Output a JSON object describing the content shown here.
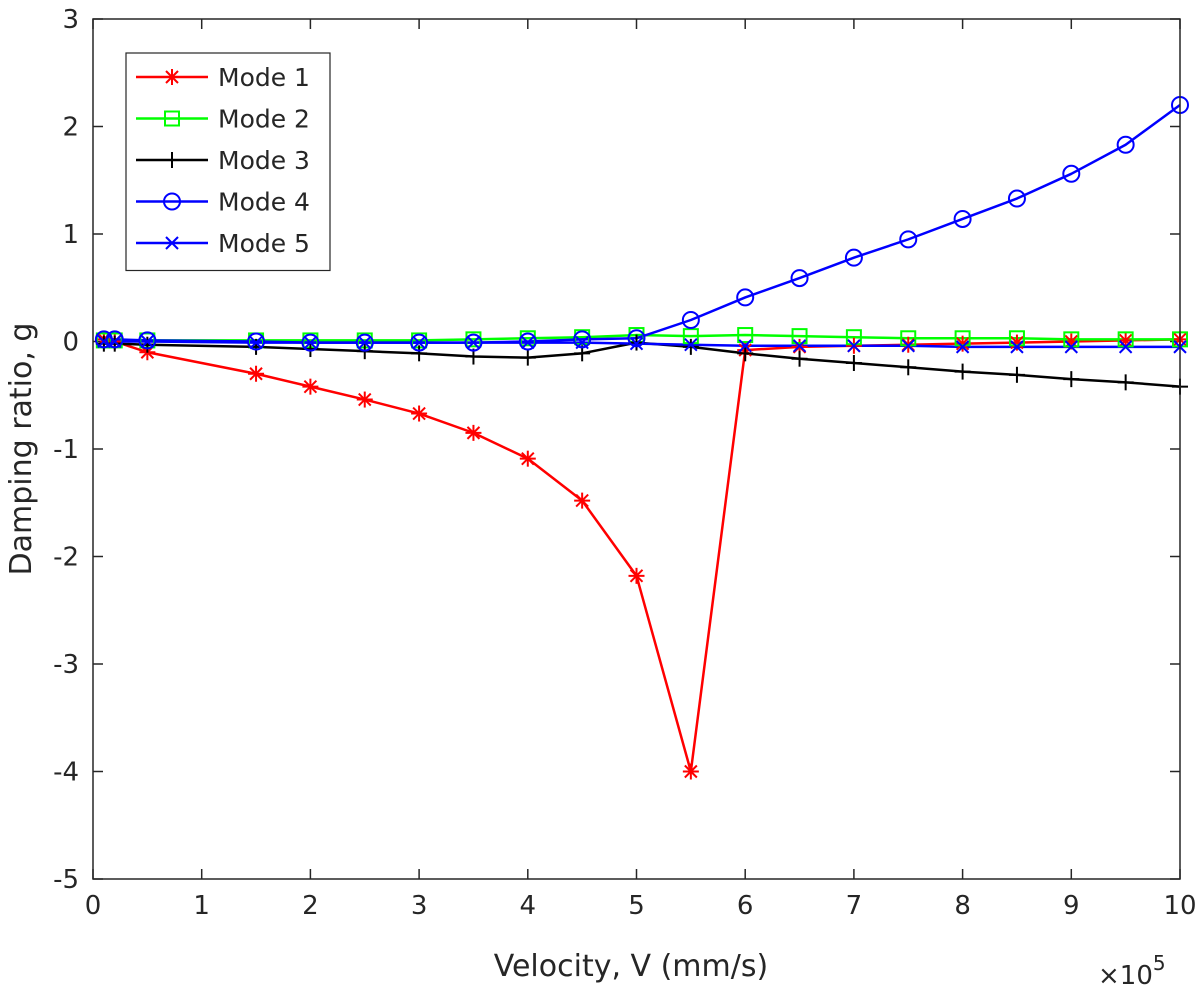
{
  "chart_data": {
    "type": "line",
    "xlabel": "Velocity, V (mm/s)",
    "ylabel": "Damping ratio, g",
    "x_multiplier_label": "×10",
    "x_multiplier_exponent": "5",
    "xlim": [
      0,
      10
    ],
    "ylim": [
      -5,
      3
    ],
    "xticks": [
      0,
      1,
      2,
      3,
      4,
      5,
      6,
      7,
      8,
      9,
      10
    ],
    "yticks": [
      3,
      2,
      1,
      0,
      -1,
      -2,
      -3,
      -4,
      -5
    ],
    "legend_placement": "top-left",
    "grid": false,
    "series": [
      {
        "name": "Mode 1",
        "color": "#ff0000",
        "marker": "asterisk",
        "x": [
          0.1,
          0.2,
          0.5,
          1.5,
          2,
          2.5,
          3,
          3.5,
          4,
          4.5,
          5,
          5.5,
          6,
          6.5,
          7,
          7.5,
          8,
          8.5,
          9,
          9.5,
          10
        ],
        "y": [
          0.02,
          0.0,
          -0.1,
          -0.3,
          -0.42,
          -0.54,
          -0.67,
          -0.85,
          -1.09,
          -1.48,
          -2.18,
          -4.0,
          -0.08,
          -0.05,
          -0.04,
          -0.03,
          -0.02,
          -0.01,
          0.0,
          0.01,
          0.02
        ]
      },
      {
        "name": "Mode 2",
        "color": "#00ff00",
        "marker": "square",
        "x": [
          0.1,
          0.2,
          0.5,
          1.5,
          2,
          2.5,
          3,
          3.5,
          4,
          4.5,
          5,
          5.5,
          6,
          6.5,
          7,
          7.5,
          8,
          8.5,
          9,
          9.5,
          10
        ],
        "y": [
          0.01,
          0.01,
          0.01,
          0.01,
          0.01,
          0.01,
          0.01,
          0.02,
          0.03,
          0.04,
          0.06,
          0.05,
          0.06,
          0.05,
          0.04,
          0.03,
          0.03,
          0.03,
          0.02,
          0.02,
          0.02
        ]
      },
      {
        "name": "Mode 3",
        "color": "#000000",
        "marker": "plus",
        "x": [
          0.1,
          0.2,
          0.5,
          1.5,
          2,
          2.5,
          3,
          3.5,
          4,
          4.5,
          5,
          5.5,
          6,
          6.5,
          7,
          7.5,
          8,
          8.5,
          9,
          9.5,
          10
        ],
        "y": [
          -0.02,
          -0.02,
          -0.03,
          -0.05,
          -0.07,
          -0.09,
          -0.11,
          -0.14,
          -0.15,
          -0.11,
          -0.01,
          -0.05,
          -0.11,
          -0.16,
          -0.2,
          -0.24,
          -0.28,
          -0.31,
          -0.35,
          -0.38,
          -0.42
        ]
      },
      {
        "name": "Mode 4",
        "color": "#0000ff",
        "marker": "circle",
        "x": [
          0.1,
          0.2,
          0.5,
          1.5,
          2,
          2.5,
          3,
          3.5,
          4,
          4.5,
          5,
          5.5,
          6,
          6.5,
          7,
          7.5,
          8,
          8.5,
          9,
          9.5,
          10
        ],
        "y": [
          0.02,
          0.02,
          0.01,
          0.0,
          -0.01,
          -0.01,
          -0.01,
          -0.01,
          0.0,
          0.02,
          0.03,
          0.2,
          0.41,
          0.59,
          0.78,
          0.95,
          1.14,
          1.33,
          1.56,
          1.83,
          2.2
        ]
      },
      {
        "name": "Mode 5",
        "color": "#0000ff",
        "marker": "x",
        "x": [
          0.1,
          0.2,
          0.5,
          1.5,
          2,
          2.5,
          3,
          3.5,
          4,
          4.5,
          5,
          5.5,
          6,
          6.5,
          7,
          7.5,
          8,
          8.5,
          9,
          9.5,
          10
        ],
        "y": [
          0.0,
          0.0,
          0.0,
          -0.01,
          -0.01,
          -0.01,
          -0.01,
          -0.01,
          -0.01,
          -0.01,
          -0.02,
          -0.03,
          -0.04,
          -0.04,
          -0.04,
          -0.04,
          -0.05,
          -0.05,
          -0.05,
          -0.05,
          -0.05
        ]
      }
    ]
  }
}
